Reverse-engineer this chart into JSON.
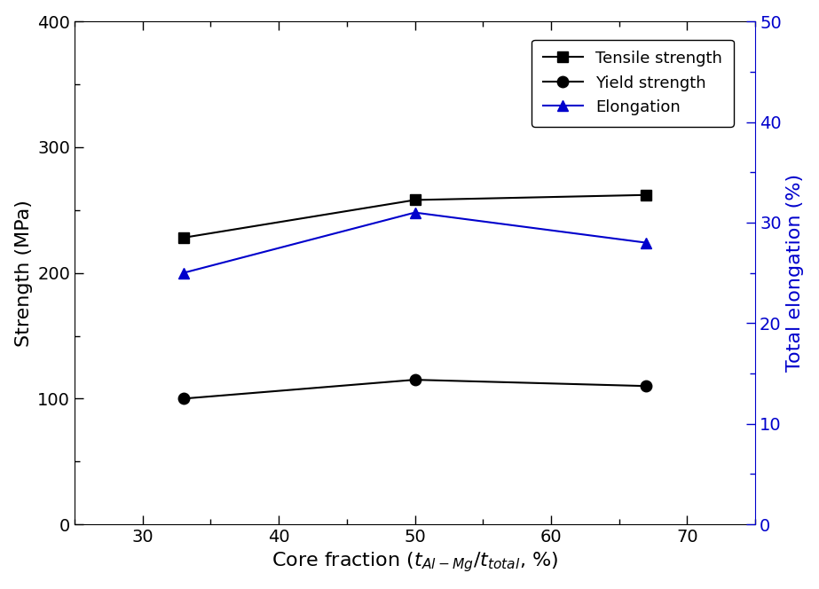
{
  "x": [
    33,
    50,
    67
  ],
  "tensile_strength": [
    228,
    258,
    262
  ],
  "yield_strength": [
    100,
    115,
    110
  ],
  "elongation": [
    25,
    31,
    28
  ],
  "left_ylabel": "Strength (MPa)",
  "right_ylabel": "Total elongation (%)",
  "xlabel": "Core fraction ($t_{Al-Mg}/t_{total}$, %)",
  "xlim": [
    25,
    75
  ],
  "xticks": [
    30,
    40,
    50,
    60,
    70
  ],
  "ylim_left": [
    0,
    400
  ],
  "yticks_left": [
    0,
    100,
    200,
    300,
    400
  ],
  "ylim_right": [
    0,
    50
  ],
  "yticks_right": [
    0,
    10,
    20,
    30,
    40,
    50
  ],
  "legend_labels": [
    "Tensile strength",
    "Yield strength",
    "Elongation"
  ],
  "black_color": "#000000",
  "blue_color": "#0000cc",
  "marker_size": 9,
  "linewidth": 1.5,
  "tick_labelsize": 14,
  "axis_labelsize": 16,
  "legend_fontsize": 13
}
